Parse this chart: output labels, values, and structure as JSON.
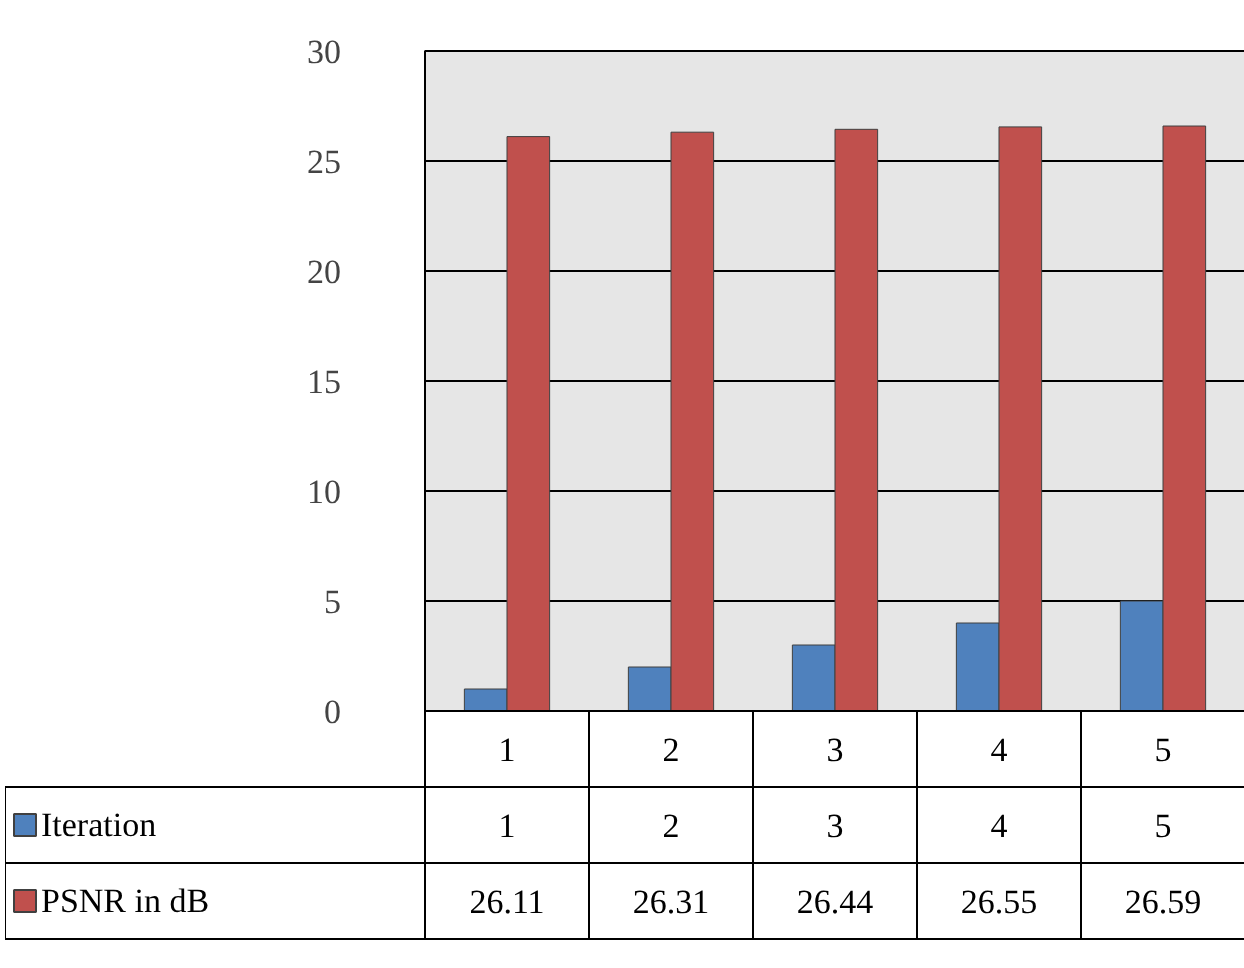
{
  "chart_data": {
    "type": "bar",
    "categories": [
      "1",
      "2",
      "3",
      "4",
      "5"
    ],
    "series": [
      {
        "name": "Iteration",
        "color": "#4f81bd",
        "values": [
          1,
          2,
          3,
          4,
          5
        ]
      },
      {
        "name": "PSNR in dB",
        "color": "#c0504d",
        "values": [
          26.11,
          26.31,
          26.44,
          26.55,
          26.59
        ]
      }
    ],
    "ylim": [
      0,
      30
    ],
    "yticks": [
      0,
      5,
      10,
      15,
      20,
      25,
      30
    ],
    "grid": "y",
    "data_labels": true,
    "legend": "bottom"
  }
}
